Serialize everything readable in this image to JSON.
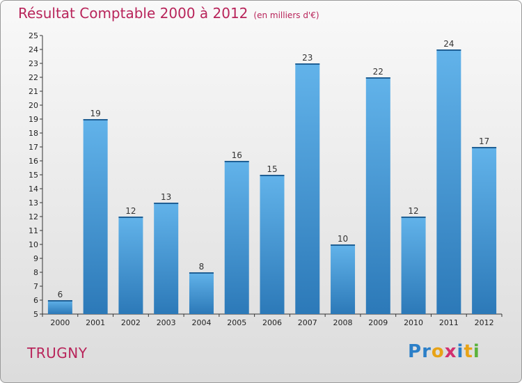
{
  "title": "Résultat Comptable 2000 à 2012",
  "subtitle": "(en milliers d'€)",
  "commune": "TRUGNY",
  "logo": [
    "P",
    "r",
    "o",
    "x",
    "i",
    "t",
    "i"
  ],
  "colors": {
    "accent": "#b8245a",
    "bar_top": "#62b3ea",
    "bar_bottom": "#2c79b8",
    "logo": [
      "#2b7fc8",
      "#2b7fc8",
      "#e8a317",
      "#d2306f",
      "#2b7fc8",
      "#e8a317",
      "#5bb23d"
    ]
  },
  "chart_data": {
    "type": "bar",
    "categories": [
      "2000",
      "2001",
      "2002",
      "2003",
      "2004",
      "2005",
      "2006",
      "2007",
      "2008",
      "2009",
      "2010",
      "2011",
      "2012"
    ],
    "values": [
      6,
      19,
      12,
      13,
      8,
      16,
      15,
      23,
      10,
      22,
      12,
      24,
      17
    ],
    "ylim": [
      5,
      25
    ],
    "yticks": [
      5,
      6,
      7,
      8,
      9,
      10,
      11,
      12,
      13,
      14,
      15,
      16,
      17,
      18,
      19,
      20,
      21,
      22,
      23,
      24,
      25
    ],
    "grid": false,
    "xlabel": "",
    "ylabel": ""
  }
}
